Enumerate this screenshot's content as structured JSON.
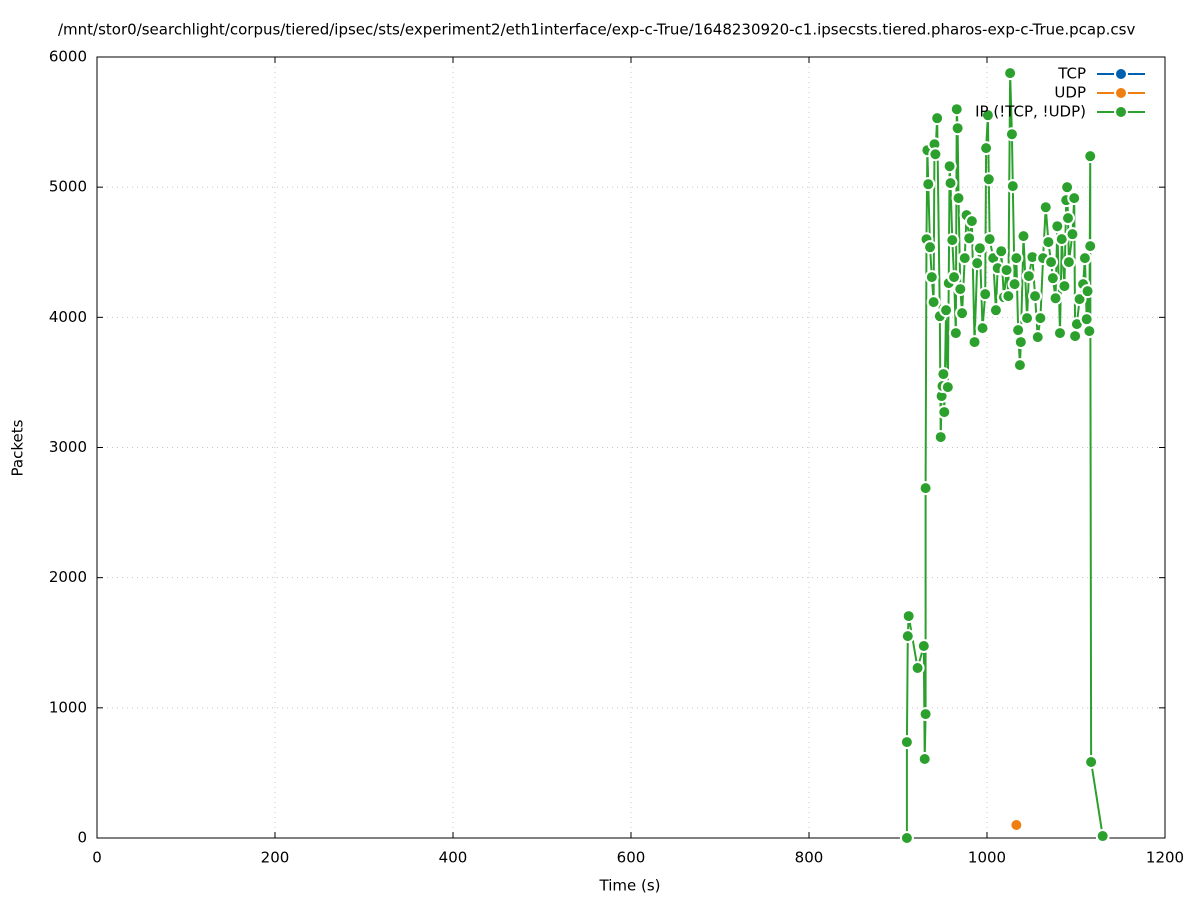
{
  "chart_data": {
    "type": "line",
    "title": "/mnt/stor0/searchlight/corpus/tiered/ipsec/sts/experiment2/eth1interface/exp-c-True/1648230920-c1.ipsecsts.tiered.pharos-exp-c-True.pcap.csv",
    "x_label": "Time (s)",
    "y_label": "Packets",
    "xlim": [
      0,
      1200
    ],
    "xticks": [
      0,
      200,
      400,
      600,
      800,
      1000,
      1200
    ],
    "ylim": [
      0,
      6000
    ],
    "yticks": [
      0,
      1000,
      2000,
      3000,
      4000,
      5000,
      6000
    ],
    "grid": true,
    "legend": "top-right",
    "series": [
      {
        "name": "TCP",
        "color": "#0060ad",
        "x": [],
        "values": []
      },
      {
        "name": "UDP",
        "color": "#f07f12",
        "x": [
          1033
        ],
        "values": [
          100
        ]
      },
      {
        "name": "IP (!TCP, !UDP)",
        "color": "#2ca02c",
        "x": [
          910,
          910,
          911,
          912,
          922,
          929,
          930,
          931,
          931,
          932,
          933,
          934,
          936,
          938,
          940,
          941,
          942,
          944,
          947,
          948,
          949,
          950,
          951,
          952,
          954,
          956,
          957,
          958,
          959,
          961,
          963,
          965,
          966,
          967,
          968,
          970,
          972,
          975,
          977,
          980,
          983,
          986,
          989,
          992,
          995,
          998,
          999,
          1001,
          1002,
          1003,
          1007,
          1010,
          1012,
          1016,
          1019,
          1022,
          1024,
          1026,
          1028,
          1029,
          1031,
          1033,
          1035,
          1037,
          1038,
          1041,
          1045,
          1047,
          1051,
          1054,
          1057,
          1060,
          1063,
          1066,
          1069,
          1072,
          1074,
          1077,
          1079,
          1082,
          1084,
          1087,
          1089,
          1090,
          1091,
          1092,
          1096,
          1098,
          1099,
          1101,
          1104,
          1108,
          1110,
          1112,
          1113,
          1115,
          1116,
          1116,
          1117,
          1130
        ],
        "values": [
          0,
          737,
          1551,
          1705,
          1306,
          1475,
          607,
          952,
          2688,
          4600,
          5284,
          5023,
          4539,
          4309,
          4117,
          5330,
          5253,
          5530,
          4009,
          3080,
          3395,
          3472,
          3564,
          3272,
          4055,
          3464,
          4263,
          5161,
          5031,
          4593,
          4309,
          3879,
          5599,
          5453,
          4916,
          4217,
          4032,
          4455,
          4785,
          4608,
          4739,
          3810,
          4416,
          4531,
          3917,
          4178,
          5300,
          5553,
          5061,
          4601,
          4455,
          4055,
          4378,
          4508,
          4155,
          4363,
          4163,
          5876,
          5407,
          5008,
          4255,
          4455,
          3902,
          3633,
          3810,
          4624,
          3994,
          4317,
          4463,
          4163,
          3848,
          3994,
          4455,
          4846,
          4578,
          4424,
          4301,
          4147,
          4700,
          3879,
          4601,
          4240,
          4900,
          5000,
          4762,
          4424,
          4639,
          4916,
          3856,
          3948,
          4140,
          4255,
          4455,
          3986,
          4201,
          3894,
          5238,
          4547,
          584,
          15
        ]
      }
    ]
  }
}
